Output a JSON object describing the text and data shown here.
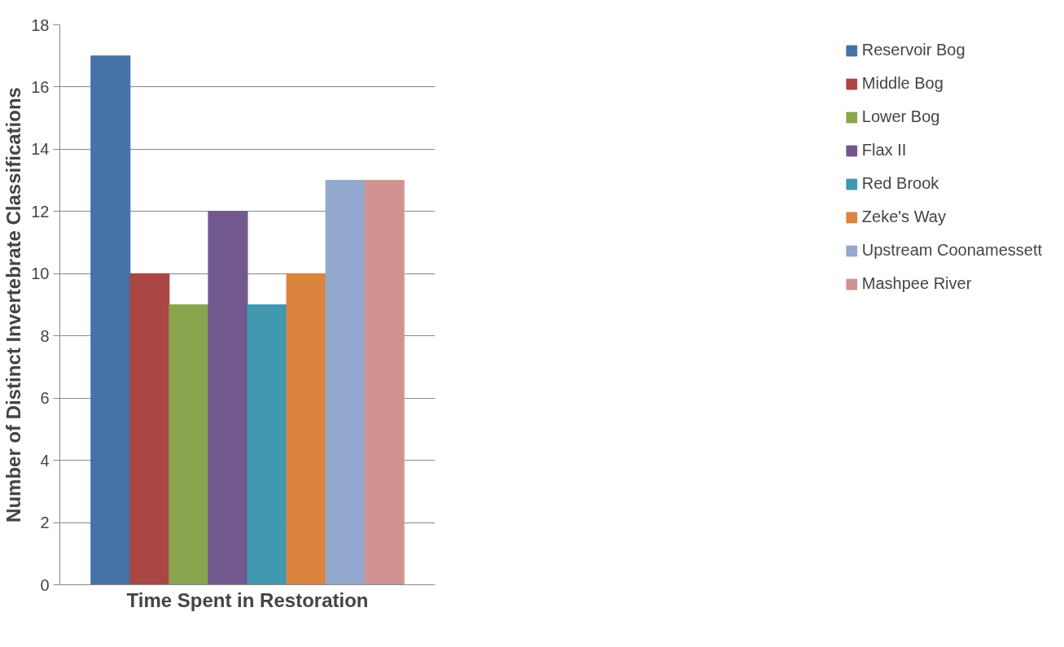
{
  "chart_data": {
    "type": "bar",
    "xlabel": "Time Spent in Restoration",
    "ylabel": "Number of Distinct Invertebrate Classifications",
    "categories": [
      null
    ],
    "series": [
      {
        "name": "Reservoir Bog",
        "color": "#4572a7",
        "values": [
          17
        ]
      },
      {
        "name": "Middle Bog",
        "color": "#aa4643",
        "values": [
          10
        ]
      },
      {
        "name": "Lower Bog",
        "color": "#89a54e",
        "values": [
          9
        ]
      },
      {
        "name": "Flax II",
        "color": "#71588f",
        "values": [
          12
        ]
      },
      {
        "name": "Red Brook",
        "color": "#4198af",
        "values": [
          9
        ]
      },
      {
        "name": "Zeke's Way",
        "color": "#db843d",
        "values": [
          10
        ]
      },
      {
        "name": "Upstream Coonamessett",
        "color": "#93a9cf",
        "values": [
          13
        ]
      },
      {
        "name": "Mashpee River",
        "color": "#d19392",
        "values": [
          13
        ]
      }
    ],
    "ylim": [
      0,
      18
    ],
    "yticks": [
      0,
      2,
      4,
      6,
      8,
      10,
      12,
      14,
      16,
      18
    ],
    "grid": "y",
    "legend": "right"
  }
}
